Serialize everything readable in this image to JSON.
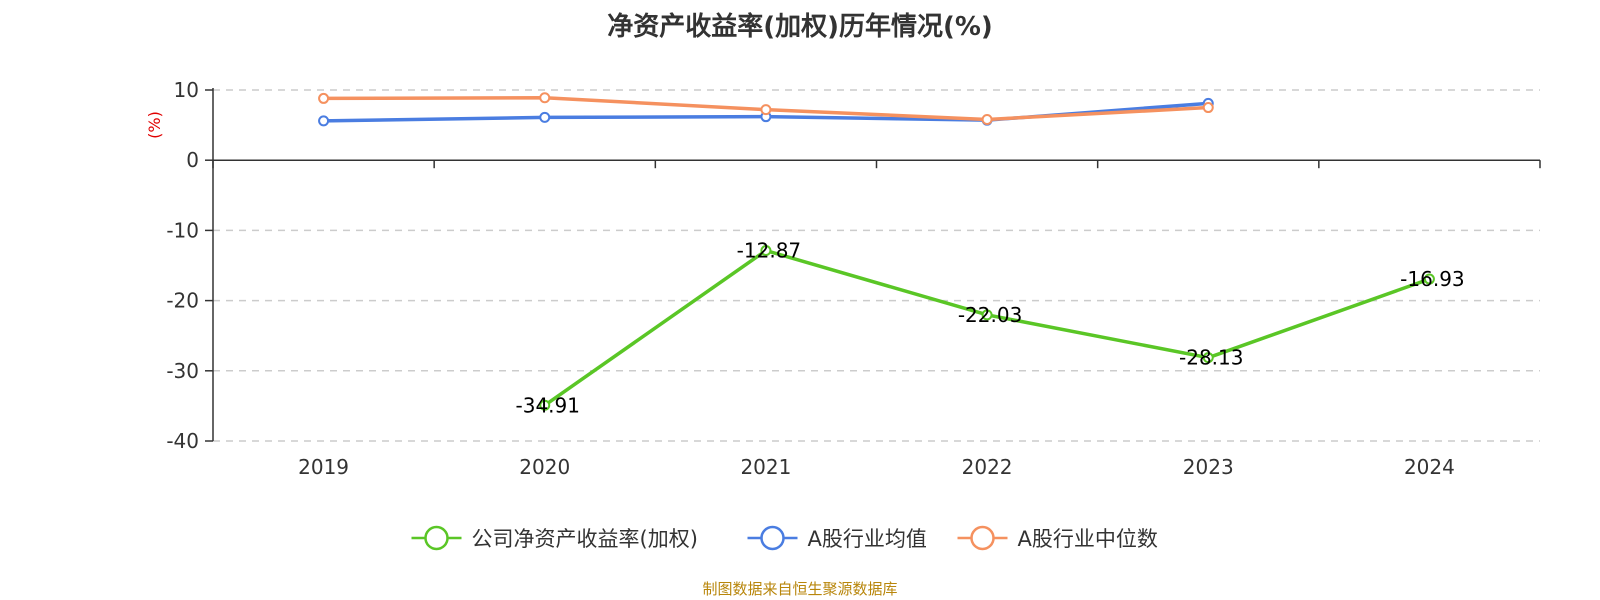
{
  "chart_data": {
    "type": "line",
    "title": "净资产收益率(加权)历年情况(%)",
    "ylabel": "(%)",
    "categories": [
      "2019",
      "2020",
      "2021",
      "2022",
      "2023",
      "2024"
    ],
    "ylim": [
      -40,
      10
    ],
    "yticks": [
      10,
      0,
      -10,
      -20,
      -30,
      -40
    ],
    "grid": "horizontal-dashed",
    "legend_position": "bottom-center",
    "series": [
      {
        "name": "公司净资产收益率(加权)",
        "color": "#5ac626",
        "values": [
          null,
          -34.91,
          -12.87,
          -22.03,
          -28.13,
          -16.93
        ],
        "labels": [
          "",
          "-34.91",
          "-12.87",
          "-22.03",
          "-28.13",
          "-16.93"
        ]
      },
      {
        "name": "A股行业均值",
        "color": "#4a7de1",
        "values": [
          5.6,
          6.1,
          6.2,
          5.7,
          8.1,
          null
        ],
        "labels": []
      },
      {
        "name": "A股行业中位数",
        "color": "#f5915f",
        "values": [
          8.8,
          8.9,
          7.2,
          5.8,
          7.5,
          null
        ],
        "labels": []
      }
    ]
  },
  "source_note": "制图数据来自恒生聚源数据库"
}
